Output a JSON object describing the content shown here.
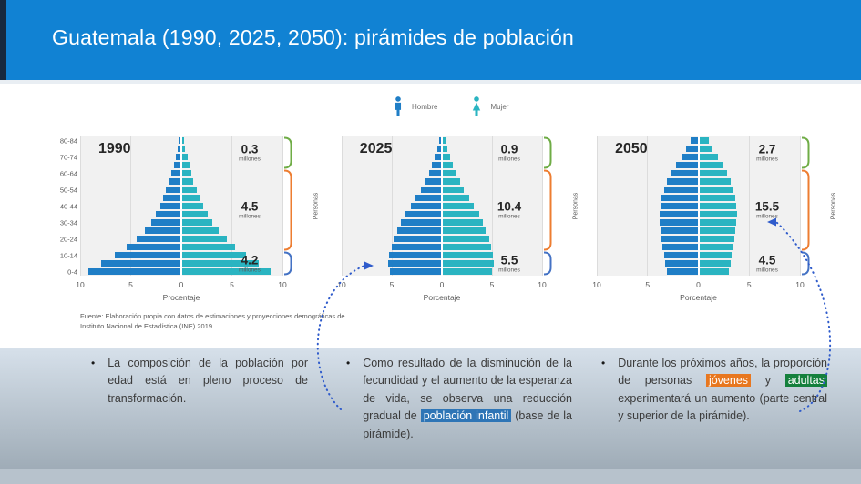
{
  "title": "Guatemala (1990, 2025, 2050): pirámides de población",
  "legend": {
    "male_label": "Hombre",
    "female_label": "Mujer"
  },
  "colors": {
    "header_blue": "#1182D3",
    "male_bar": "#1F7EC6",
    "female_bar": "#2AB4C1",
    "bracket_green": "#6FAC46",
    "bracket_orange": "#ED7D31",
    "bracket_blue": "#4472C4",
    "highlight_blue": "#2E75B6",
    "highlight_orange": "#E8771F",
    "highlight_green": "#15803C"
  },
  "chart_data": [
    {
      "type": "bar",
      "subtype": "population-pyramid",
      "year": "1990",
      "xlabel": "Procentaje",
      "right_axis_label": "Personas",
      "x_ticks": [
        "10",
        "5",
        "0",
        "5",
        "10"
      ],
      "xlim": [
        -10,
        10
      ],
      "age_groups": [
        "0-4",
        "5-9",
        "10-14",
        "15-19",
        "20-24",
        "25-29",
        "30-34",
        "35-39",
        "40-44",
        "45-49",
        "50-54",
        "55-59",
        "60-64",
        "65-69",
        "70-74",
        "75-79",
        "80-84"
      ],
      "show_age_axis": true,
      "series": [
        {
          "name": "Hombre",
          "values": [
            9.2,
            7.9,
            6.6,
            5.4,
            4.4,
            3.6,
            3.0,
            2.5,
            2.1,
            1.8,
            1.5,
            1.2,
            1.0,
            0.7,
            0.5,
            0.35,
            0.2
          ]
        },
        {
          "name": "Mujer",
          "values": [
            8.8,
            7.7,
            6.4,
            5.3,
            4.5,
            3.7,
            3.1,
            2.6,
            2.2,
            1.8,
            1.5,
            1.2,
            1.0,
            0.8,
            0.6,
            0.4,
            0.3
          ]
        }
      ],
      "annotations": [
        {
          "value": "0.3",
          "unit": "millones",
          "color": "#6FAC46",
          "span_rows": 4
        },
        {
          "value": "4.5",
          "unit": "millones",
          "color": "#ED7D31",
          "span_rows": 10
        },
        {
          "value": "4.2",
          "unit": "millones",
          "color": "#4472C4",
          "span_rows": 3
        }
      ]
    },
    {
      "type": "bar",
      "subtype": "population-pyramid",
      "year": "2025",
      "xlabel": "Porcentaje",
      "right_axis_label": "Personas",
      "x_ticks": [
        "10",
        "5",
        "0",
        "5",
        "10"
      ],
      "xlim": [
        -10,
        10
      ],
      "age_groups": [
        "0-4",
        "5-9",
        "10-14",
        "15-19",
        "20-24",
        "25-29",
        "30-34",
        "35-39",
        "40-44",
        "45-49",
        "50-54",
        "55-59",
        "60-64",
        "65-69",
        "70-74",
        "75-79",
        "80-84"
      ],
      "show_age_axis": false,
      "series": [
        {
          "name": "Hombre",
          "values": [
            5.2,
            5.4,
            5.3,
            5.0,
            4.8,
            4.5,
            4.1,
            3.6,
            3.1,
            2.6,
            2.1,
            1.7,
            1.3,
            1.0,
            0.7,
            0.45,
            0.25
          ]
        },
        {
          "name": "Mujer",
          "values": [
            5.0,
            5.2,
            5.1,
            4.9,
            4.7,
            4.4,
            4.1,
            3.7,
            3.2,
            2.7,
            2.2,
            1.8,
            1.4,
            1.1,
            0.8,
            0.55,
            0.35
          ]
        }
      ],
      "annotations": [
        {
          "value": "0.9",
          "unit": "millones",
          "color": "#6FAC46",
          "span_rows": 4
        },
        {
          "value": "10.4",
          "unit": "millones",
          "color": "#ED7D31",
          "span_rows": 10
        },
        {
          "value": "5.5",
          "unit": "millones",
          "color": "#4472C4",
          "span_rows": 3
        }
      ]
    },
    {
      "type": "bar",
      "subtype": "population-pyramid",
      "year": "2050",
      "xlabel": "Porcentaje",
      "right_axis_label": "Personas",
      "x_ticks": [
        "10",
        "5",
        "0",
        "5",
        "10"
      ],
      "xlim": [
        -10,
        10
      ],
      "age_groups": [
        "0-4",
        "5-9",
        "10-14",
        "15-19",
        "20-24",
        "25-29",
        "30-34",
        "35-39",
        "40-44",
        "45-49",
        "50-54",
        "55-59",
        "60-64",
        "65-69",
        "70-74",
        "75-79",
        "80-84"
      ],
      "show_age_axis": false,
      "series": [
        {
          "name": "Hombre",
          "values": [
            3.1,
            3.3,
            3.4,
            3.5,
            3.6,
            3.7,
            3.8,
            3.8,
            3.7,
            3.6,
            3.4,
            3.1,
            2.7,
            2.2,
            1.7,
            1.2,
            0.8
          ]
        },
        {
          "name": "Mujer",
          "values": [
            3.0,
            3.2,
            3.3,
            3.4,
            3.5,
            3.6,
            3.7,
            3.8,
            3.7,
            3.6,
            3.4,
            3.2,
            2.8,
            2.4,
            1.9,
            1.4,
            1.0
          ]
        }
      ],
      "annotations": [
        {
          "value": "2.7",
          "unit": "millones",
          "color": "#6FAC46",
          "span_rows": 4
        },
        {
          "value": "15.5",
          "unit": "millones",
          "color": "#ED7D31",
          "span_rows": 10
        },
        {
          "value": "4.5",
          "unit": "millones",
          "color": "#4472C4",
          "span_rows": 3
        }
      ]
    }
  ],
  "source": "Fuente: Elaboración propia con datos de estimaciones y proyecciones demográficas de Instituto Nacional de Estadística (INE) 2019.",
  "bullets": [
    {
      "segments": [
        {
          "text": "La composición de la población por edad está en pleno proceso de transformación."
        }
      ]
    },
    {
      "segments": [
        {
          "text": "Como resultado de la disminución de la fecundidad y el aumento de la esperanza de vida, se observa una reducción gradual de "
        },
        {
          "text": "población infantil",
          "highlight": "#2E75B6"
        },
        {
          "text": " (base de la pirámide)."
        }
      ]
    },
    {
      "segments": [
        {
          "text": "Durante los próximos años, la proporción de personas "
        },
        {
          "text": "jóvenes",
          "highlight": "#E8771F"
        },
        {
          "text": " y "
        },
        {
          "text": "adultas",
          "highlight": "#15803C"
        },
        {
          "text": " experimentará un aumento (parte central y superior de la pirámide)."
        }
      ]
    }
  ]
}
